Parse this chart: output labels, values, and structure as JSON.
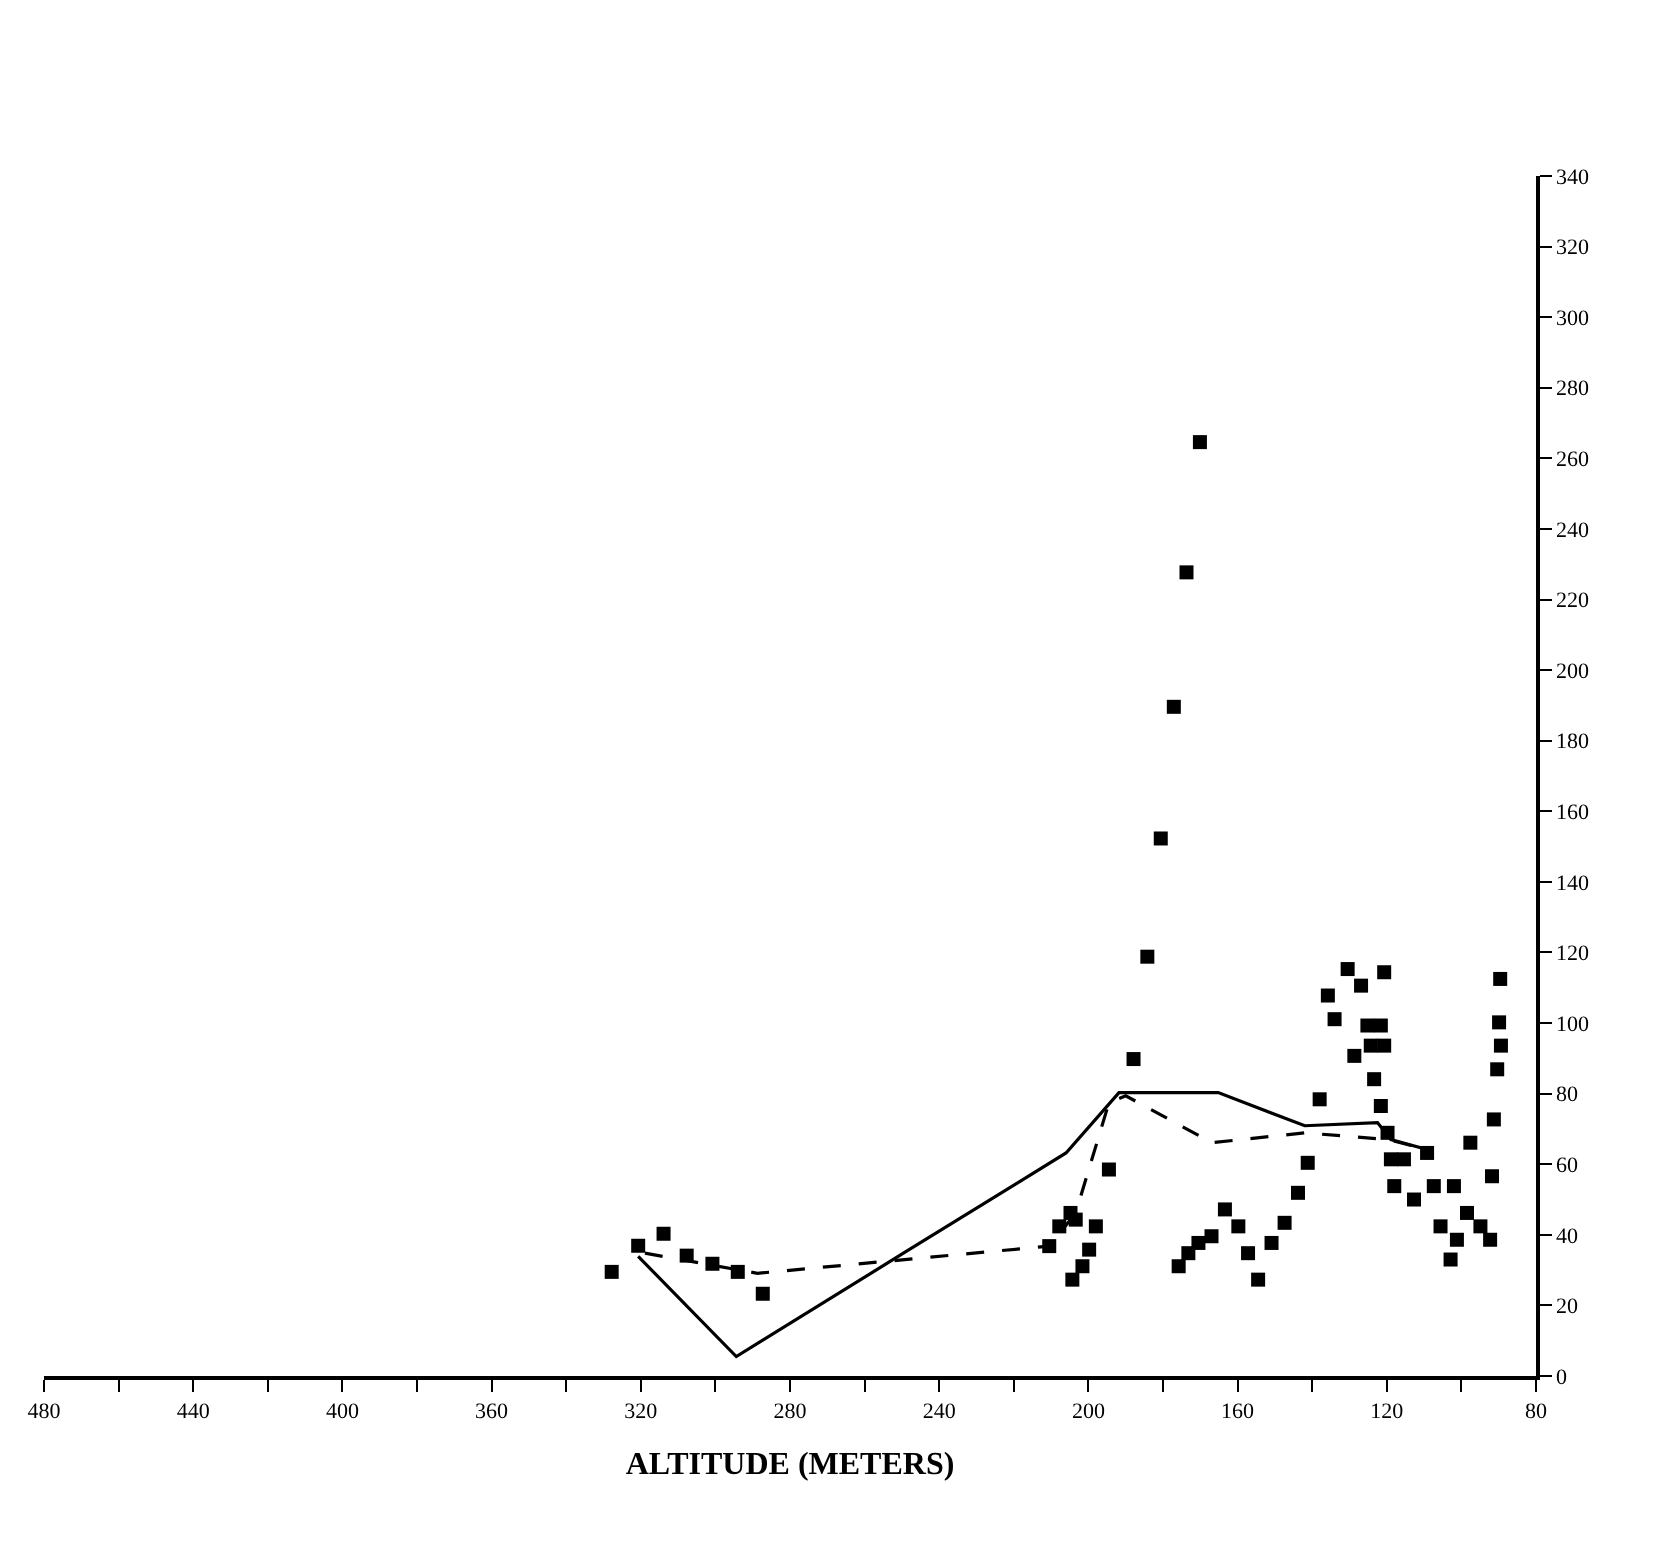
{
  "chart_data": {
    "type": "scatter",
    "xlabel": "ALTITUDE (METERS)",
    "xlim": [
      480,
      80
    ],
    "xticks": [
      480,
      {
        "value": 460,
        "label": null
      },
      440,
      {
        "value": 420,
        "label": null
      },
      400,
      {
        "value": 380,
        "label": null
      },
      360,
      {
        "value": 340,
        "label": null
      },
      320,
      {
        "value": 300,
        "label": null
      },
      280,
      {
        "value": 260,
        "label": null
      },
      240,
      {
        "value": 220,
        "label": null
      },
      200,
      {
        "value": 180,
        "label": null
      },
      160,
      {
        "value": 140,
        "label": null
      },
      120,
      {
        "value": 100,
        "label": null
      },
      80
    ],
    "ylim": [
      0,
      340
    ],
    "yticks": [
      0,
      20,
      40,
      60,
      80,
      100,
      120,
      140,
      160,
      180,
      200,
      220,
      240,
      260,
      280,
      300,
      320,
      340
    ],
    "series": [
      {
        "color": "#000000",
        "marker": "square",
        "x": [
          327.8,
          320.7,
          313.9,
          307.7,
          300.8,
          294,
          287.3,
          210.5,
          207.8,
          204.8,
          203.4,
          198.0,
          199.8,
          201.6,
          204.3,
          194.5,
          187.9,
          184.2,
          180.6,
          177.1,
          173.7,
          170.1,
          175.8,
          173.2,
          170.5,
          167.0,
          163.4,
          159.8,
          157.2,
          154.5,
          150.9,
          147.4,
          143.8,
          141.2,
          138.0,
          135.8,
          134.0,
          130.5,
          126.9,
          120.7,
          128.7,
          125.2,
          121.6,
          124.3,
          120.7,
          123.4,
          121.6,
          119.8,
          118.9,
          118.0,
          115.4,
          112.7,
          109.2,
          107.4,
          105.6,
          102.9,
          101.2,
          102.0,
          98.5,
          97.6,
          94.9,
          92.3,
          91.8,
          91.3,
          90.4,
          89.9,
          89.4,
          89.6
        ],
        "values": [
          29.5,
          36.9,
          40.3,
          34.1,
          31.8,
          29.5,
          23.3,
          36.8,
          42.4,
          46.2,
          44.3,
          42.4,
          35.8,
          31.1,
          27.3,
          58.5,
          89.8,
          118.8,
          152.3,
          189.6,
          227.7,
          264.6,
          31.1,
          34.8,
          37.7,
          39.6,
          47.2,
          42.4,
          34.8,
          27.3,
          37.7,
          43.4,
          51.9,
          60.4,
          78.4,
          107.8,
          101.1,
          115.3,
          110.6,
          114.4,
          90.7,
          99.3,
          99.3,
          93.6,
          93.6,
          84.1,
          76.5,
          68.9,
          61.4,
          53.8,
          61.4,
          50.0,
          63.2,
          53.8,
          42.4,
          33.0,
          38.6,
          53.8,
          46.2,
          66.1,
          42.4,
          38.6,
          56.6,
          72.7,
          86.9,
          100.2,
          93.6,
          112.5
        ]
      },
      {
        "type": "line",
        "color": "#000000",
        "marker": "none",
        "line_style": "solid",
        "x": [
          320.7,
          294.4,
          249.6,
          206.0,
          191.8,
          165.2,
          142.0,
          122.5,
          118.9,
          109.2
        ],
        "values": [
          33.9,
          5.5,
          34.8,
          63.2,
          80.3,
          80.3,
          70.9,
          71.8,
          67.0,
          64.2
        ]
      },
      {
        "type": "line",
        "color": "#000000",
        "marker": "none",
        "line_style": "dashed",
        "x": [
          318.9,
          288.7,
          210.5,
          203.4,
          194.5,
          190.0,
          166.9,
          142.0,
          119.8,
          109.2
        ],
        "values": [
          34.8,
          29.1,
          36.8,
          46.2,
          77.4,
          79.4,
          66.1,
          68.9,
          67.0,
          64.2
        ]
      }
    ]
  }
}
